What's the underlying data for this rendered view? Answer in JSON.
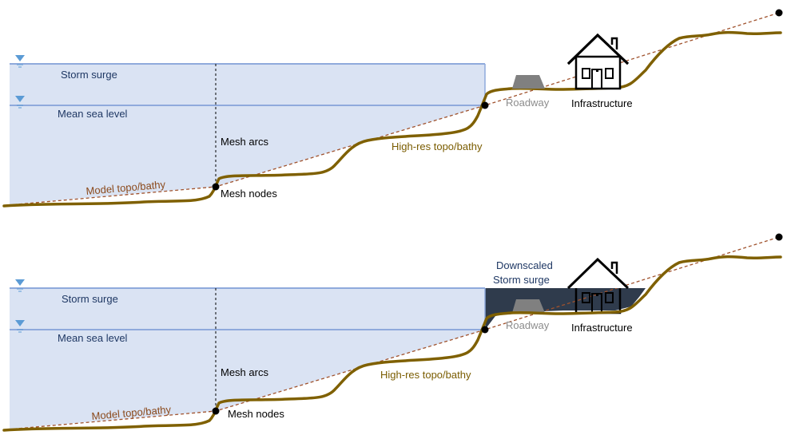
{
  "panels": [
    {
      "id": "before",
      "labels": {
        "storm_surge": "Storm surge",
        "mean_sea_level": "Mean sea level",
        "mesh_arcs": "Mesh arcs",
        "model_topo": "Model topo/bathy",
        "mesh_nodes": "Mesh nodes",
        "high_res_topo": "High-res topo/bathy",
        "roadway": "Roadway",
        "infrastructure": "Infrastructure"
      }
    },
    {
      "id": "after",
      "labels": {
        "storm_surge": "Storm surge",
        "mean_sea_level": "Mean sea level",
        "mesh_arcs": "Mesh arcs",
        "model_topo": "Model topo/bathy",
        "mesh_nodes": "Mesh nodes",
        "high_res_topo": "High-res topo/bathy",
        "roadway": "Roadway",
        "infrastructure": "Infrastructure",
        "downscaled_line1": "Downscaled",
        "downscaled_line2": "Storm surge"
      }
    }
  ],
  "colors": {
    "water_fill": "#dae3f3",
    "water_line": "#8faadc",
    "surge_marker": "#5b9bd5",
    "downscaled_fill": "#2f3b4c",
    "terrain": "#7f6000",
    "model_line": "#a0522d",
    "node": "#000000",
    "roadway": "#808080"
  },
  "icons": [
    "water-level-marker-icon",
    "house-icon",
    "roadway-icon",
    "mesh-node-icon"
  ]
}
